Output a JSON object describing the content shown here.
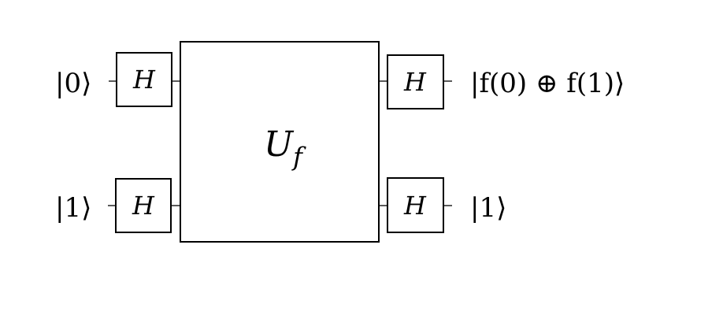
{
  "inputs": [
    {
      "label": "|0⟩"
    },
    {
      "label": "|1⟩"
    }
  ],
  "outputs": [
    {
      "label": "|f(0) ⊕ f(1)⟩"
    },
    {
      "label": "|1⟩"
    }
  ],
  "gates": {
    "h_label": "H",
    "oracle_main": "U",
    "oracle_sub": "f"
  }
}
